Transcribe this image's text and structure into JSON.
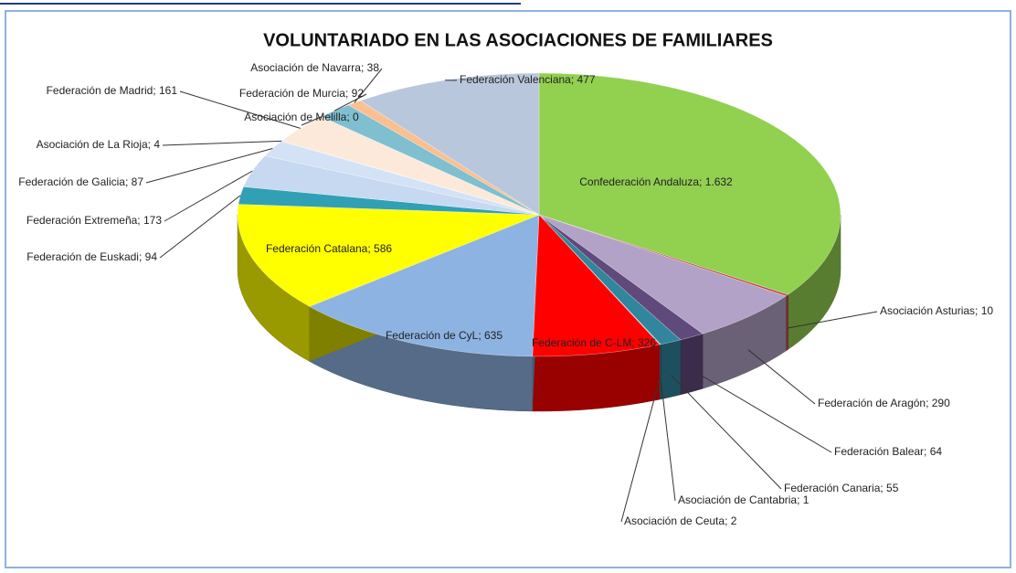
{
  "chart_data": {
    "type": "pie3d",
    "title": "VOLUNTARIADO EN LAS ASOCIACIONES DE FAMILIARES",
    "values": [
      1632,
      10,
      290,
      64,
      55,
      1,
      2,
      326,
      635,
      586,
      94,
      173,
      87,
      4,
      161,
      0,
      92,
      38,
      477
    ],
    "value_labels": [
      "Confederación Andaluza; 1.632",
      "Asociación Asturias; 10",
      "Federación de Aragón; 290",
      "Federación Balear; 64",
      "Federación Canaria; 55",
      "Asociación de Cantabria; 1",
      "Asociación de Ceuta; 2",
      "Federación de C-LM; 326",
      "Federación de CyL; 635",
      "Federación Catalana; 586",
      "Federación de Euskadi; 94",
      "Federación Extremeña; 173",
      "Federación de Galicia; 87",
      "Asociación de La Rioja; 4",
      "Federación de Madrid; 161",
      "Asociación de Melilla; 0",
      "Federación de Murcia; 92",
      "Asociación de Navarra; 38",
      "Federación Valenciana; 477"
    ],
    "colors": [
      "#92d050",
      "#c0504d",
      "#b3a2c7",
      "#604a7b",
      "#31859c",
      "#215968",
      "#4bacc6",
      "#ff0000",
      "#8db3e2",
      "#ffff00",
      "#31a0b5",
      "#c6d9f1",
      "#d3e2f4",
      "#e6e0ec",
      "#fde9d9",
      "#dddddd",
      "#7fbfd0",
      "#fac090",
      "#b9c7dc"
    ]
  }
}
